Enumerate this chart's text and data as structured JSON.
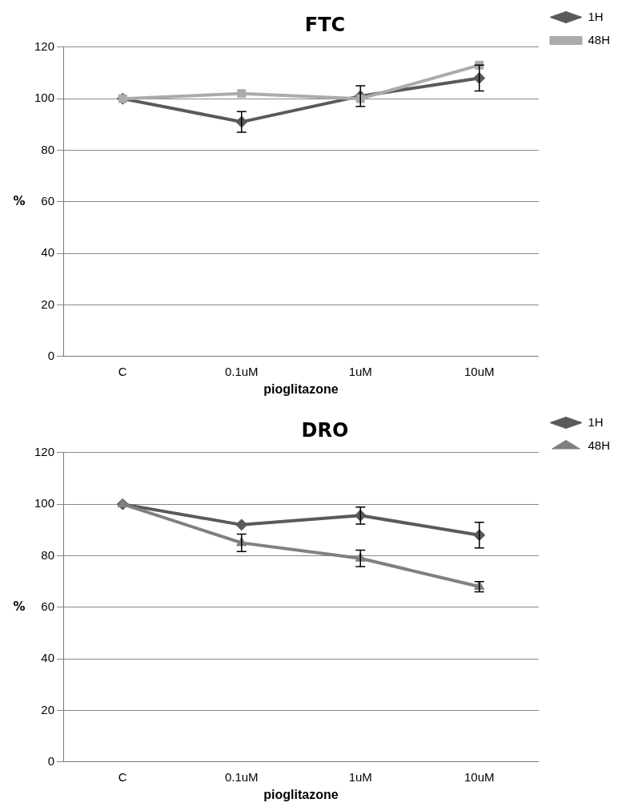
{
  "chart_data": [
    {
      "type": "line",
      "title": "FTC",
      "xlabel": "pioglitazone",
      "ylabel": "%",
      "categories": [
        "C",
        "0.1uM",
        "1uM",
        "10uM"
      ],
      "ylim": [
        0,
        120
      ],
      "yticks": [
        0,
        20,
        40,
        60,
        80,
        100,
        120
      ],
      "grid": "y",
      "legend": "top right",
      "series": [
        {
          "name": "1H",
          "color": "#5a5a5a",
          "marker": "diamond",
          "values": [
            100,
            91,
            101,
            108
          ],
          "errors": [
            null,
            4,
            4,
            5
          ]
        },
        {
          "name": "48H",
          "color": "#ababab",
          "marker": "square",
          "values": [
            100,
            102,
            100,
            113
          ]
        }
      ]
    },
    {
      "type": "line",
      "title": "DRO",
      "xlabel": "pioglitazone",
      "ylabel": "%",
      "categories": [
        "C",
        "0.1uM",
        "1uM",
        "10uM"
      ],
      "ylim": [
        0,
        120
      ],
      "yticks": [
        0,
        20,
        40,
        60,
        80,
        100,
        120
      ],
      "grid": "y",
      "legend": "top right",
      "series": [
        {
          "name": "1H",
          "color": "#5a5a5a",
          "marker": "diamond",
          "values": [
            100,
            92,
            95.6,
            88
          ],
          "errors": [
            null,
            null,
            3.3,
            5
          ]
        },
        {
          "name": "48H",
          "color": "#808080",
          "marker": "triangle",
          "values": [
            100,
            85,
            79,
            68
          ],
          "errors": [
            null,
            3.4,
            3.2,
            2
          ]
        }
      ]
    }
  ]
}
